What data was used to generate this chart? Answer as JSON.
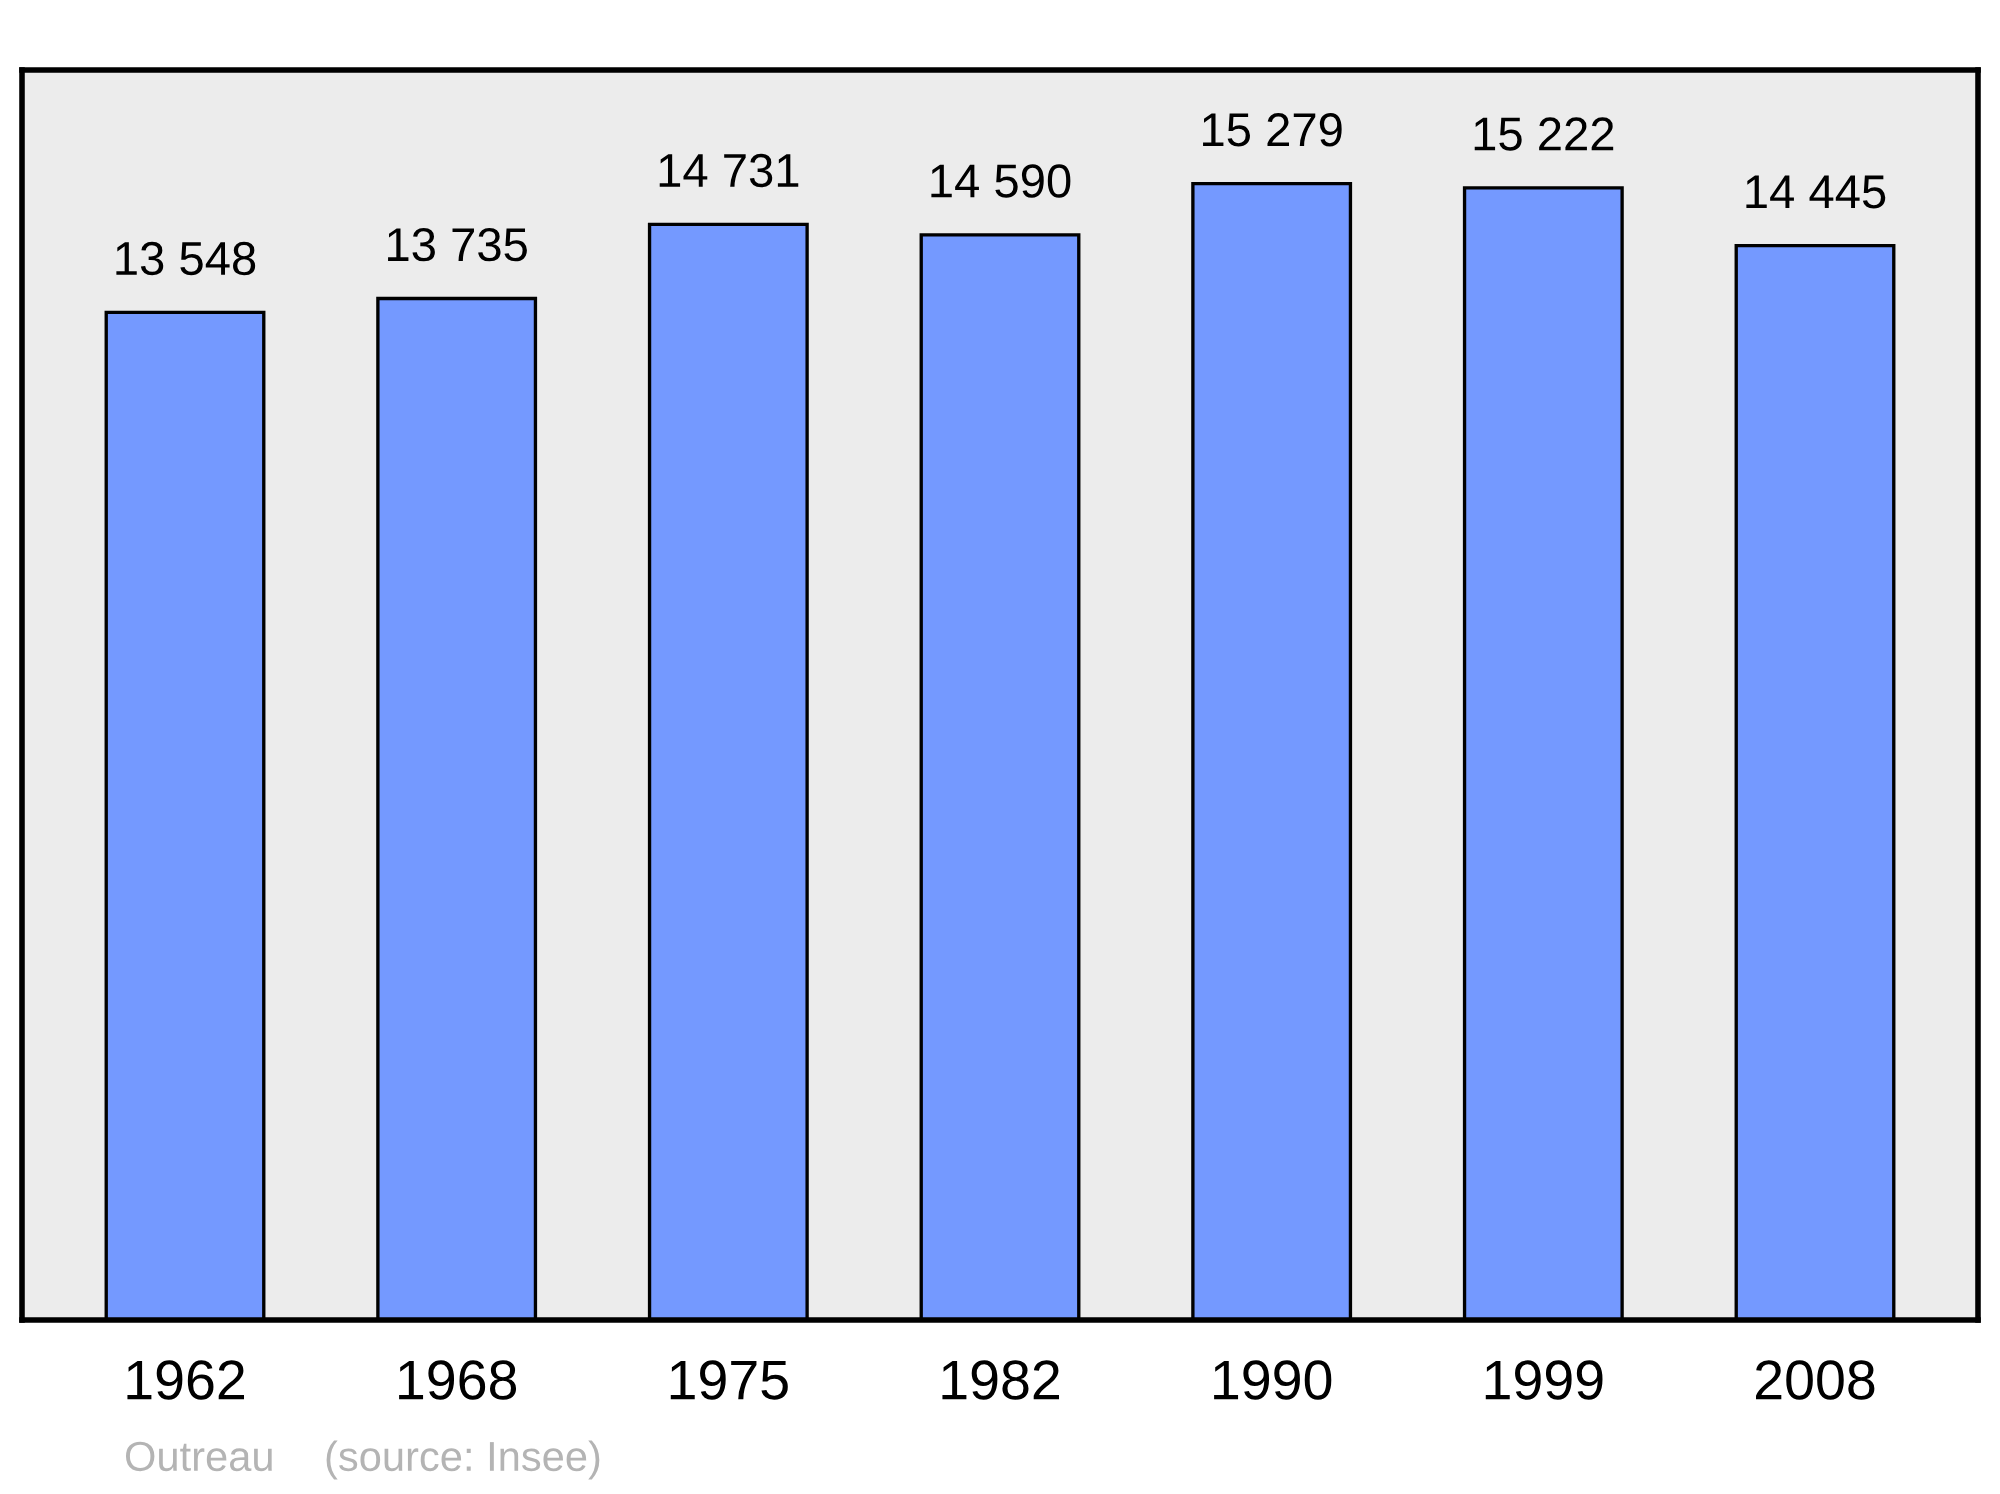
{
  "chart_data": {
    "type": "bar",
    "categories": [
      "1962",
      "1968",
      "1975",
      "1982",
      "1990",
      "1999",
      "2008"
    ],
    "values": [
      13548,
      13735,
      14731,
      14590,
      15279,
      15222,
      14445
    ],
    "value_labels": [
      "13 548",
      "13 735",
      "14 731",
      "14 590",
      "15 279",
      "15 222",
      "14 445"
    ],
    "color": "#7499ff",
    "annotations": [
      "Outreau",
      "(source: Insee)"
    ],
    "grid": false
  }
}
